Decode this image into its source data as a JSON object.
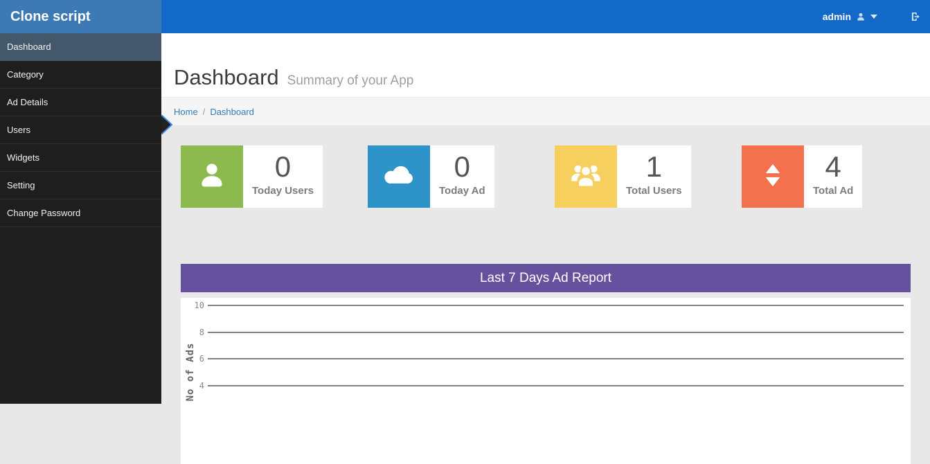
{
  "brand": {
    "title": "Clone script"
  },
  "navbar": {
    "user_label": "admin",
    "user_icon": "user",
    "caret_icon": "caret-down",
    "signout_icon": "sign-out",
    "bg_color": "#1369c8",
    "brand_bg_color": "#3d79b4"
  },
  "sidebar": {
    "items": [
      {
        "label": "Dashboard",
        "active": true
      },
      {
        "label": "Category",
        "active": false
      },
      {
        "label": "Ad Details",
        "active": false
      },
      {
        "label": "Users",
        "active": false
      },
      {
        "label": "Widgets",
        "active": false
      },
      {
        "label": "Setting",
        "active": false
      },
      {
        "label": "Change Password",
        "active": false
      }
    ]
  },
  "header": {
    "title": "Dashboard",
    "subtitle": "Summary of your App"
  },
  "breadcrumb": {
    "items": [
      "Home",
      "Dashboard"
    ],
    "separator": "/"
  },
  "stats": [
    {
      "icon": "user",
      "color": "#8cba4f",
      "value": "0",
      "label": "Today Users"
    },
    {
      "icon": "cloud",
      "color": "#2e93c9",
      "value": "0",
      "label": "Today Ad"
    },
    {
      "icon": "users",
      "color": "#f7cf5c",
      "value": "1",
      "label": "Total Users"
    },
    {
      "icon": "sort",
      "color": "#f4714d",
      "value": "4",
      "label": "Total Ad"
    }
  ],
  "report": {
    "header_bg": "#66519f"
  },
  "chart_data": {
    "type": "line",
    "title": "Last 7 Days Ad Report",
    "ylabel": "No of Ads",
    "yticks": [
      10,
      8,
      6,
      4
    ],
    "ylim_visible_top": 10,
    "grid": true,
    "gridline_color": "#808080",
    "series": [],
    "visible_note": "chart plot area is cut off at the bottom of the viewport; no data points or x-axis labels are visible"
  }
}
